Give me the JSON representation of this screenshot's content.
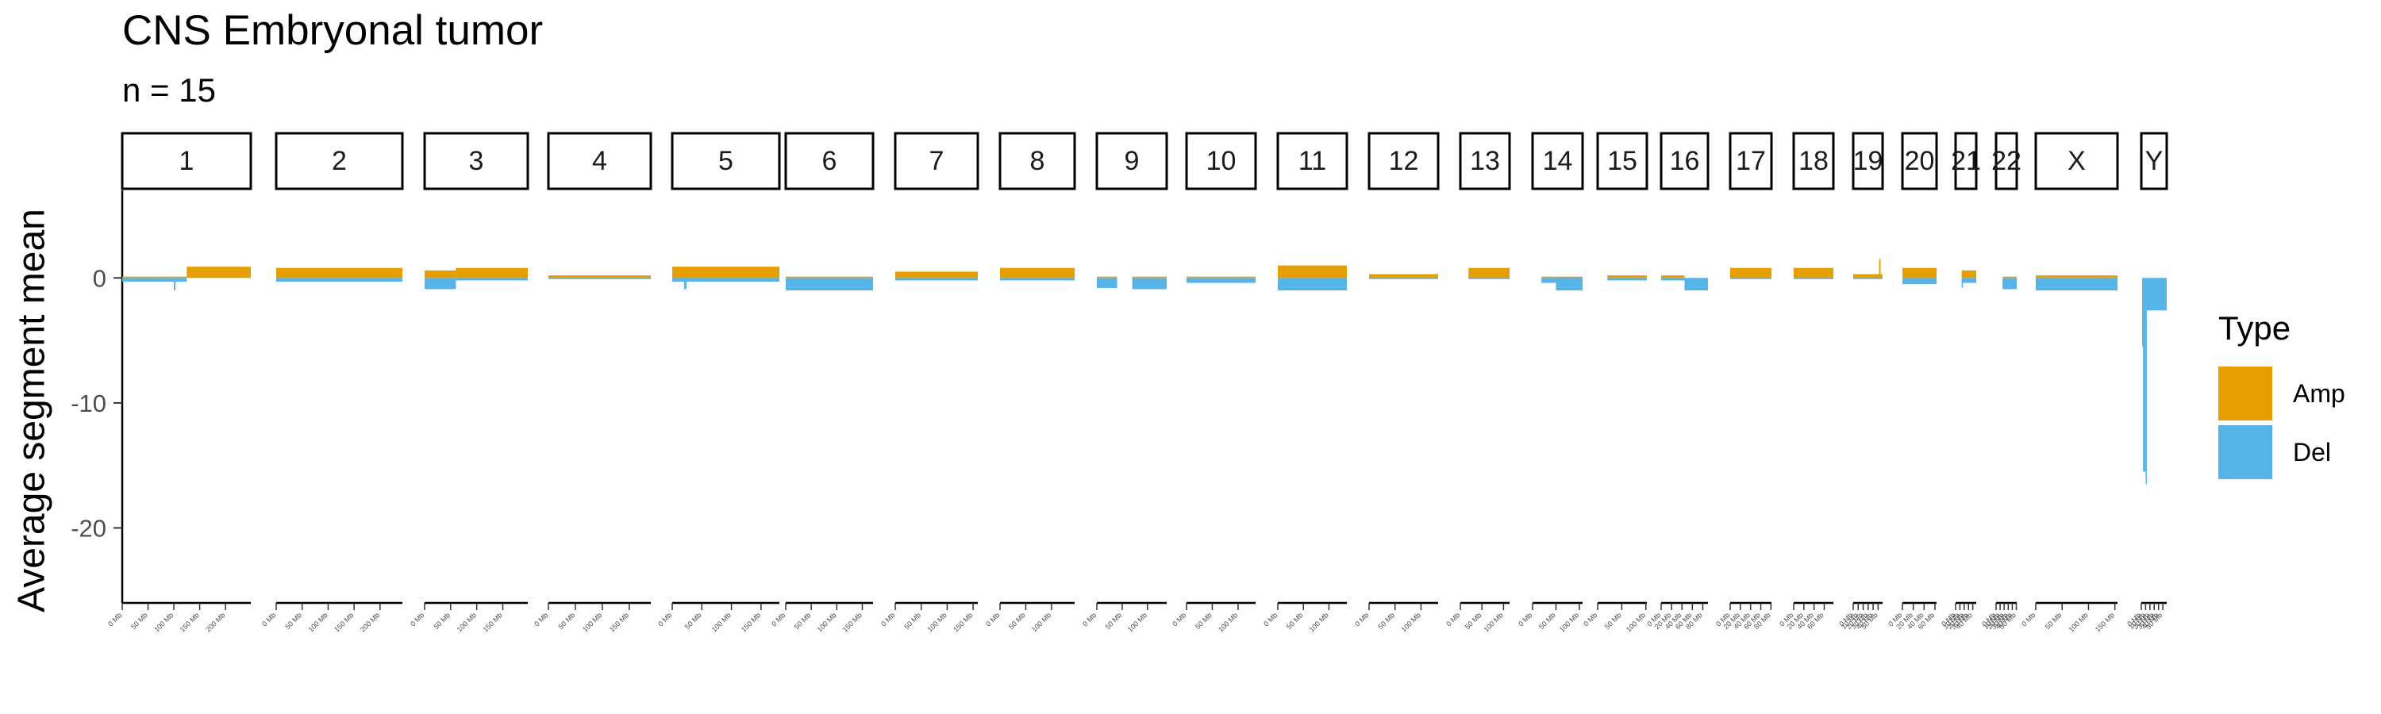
{
  "title": "CNS Embryonal tumor",
  "subtitle": "n = 15",
  "colors": {
    "amp": "#E69F00",
    "del": "#56B4E9"
  },
  "chart_data": {
    "type": "bar",
    "ylabel": "Average segment mean",
    "ylim": [
      -26,
      7
    ],
    "yticks": [
      0,
      -10,
      -20
    ],
    "grid": false,
    "legend": {
      "title": "Type",
      "placement": "right",
      "entries": [
        "Amp",
        "Del"
      ]
    },
    "x_tick_unit": "Mb",
    "series": [
      {
        "name": "Amp",
        "color": "#E69F00"
      },
      {
        "name": "Del",
        "color": "#56B4E9"
      }
    ],
    "panels": [
      {
        "label": "1",
        "length_mb": 249,
        "segments": [
          {
            "from": 0,
            "to": 125,
            "amp": 0.1,
            "del": -0.3
          },
          {
            "from": 100,
            "to": 103,
            "amp": 0,
            "del": -1.0
          },
          {
            "from": 125,
            "to": 249,
            "amp": 0.9,
            "del": 0
          }
        ]
      },
      {
        "label": "2",
        "length_mb": 243,
        "segments": [
          {
            "from": 0,
            "to": 243,
            "amp": 0.8,
            "del": -0.3
          }
        ]
      },
      {
        "label": "3",
        "length_mb": 198,
        "segments": [
          {
            "from": 0,
            "to": 60,
            "amp": 0.6,
            "del": -0.9
          },
          {
            "from": 60,
            "to": 198,
            "amp": 0.8,
            "del": -0.2
          }
        ]
      },
      {
        "label": "4",
        "length_mb": 190,
        "segments": [
          {
            "from": 0,
            "to": 190,
            "amp": 0.2,
            "del": -0.1
          }
        ]
      },
      {
        "label": "5",
        "length_mb": 181,
        "segments": [
          {
            "from": 0,
            "to": 181,
            "amp": 0.9,
            "del": -0.3
          },
          {
            "from": 20,
            "to": 24,
            "amp": 0,
            "del": -0.9
          }
        ]
      },
      {
        "label": "6",
        "length_mb": 171,
        "segments": [
          {
            "from": 0,
            "to": 171,
            "amp": 0.1,
            "del": -1.0
          }
        ]
      },
      {
        "label": "7",
        "length_mb": 159,
        "segments": [
          {
            "from": 0,
            "to": 159,
            "amp": 0.5,
            "del": -0.2
          }
        ]
      },
      {
        "label": "8",
        "length_mb": 145,
        "segments": [
          {
            "from": 0,
            "to": 145,
            "amp": 0.8,
            "del": -0.2
          }
        ]
      },
      {
        "label": "9",
        "length_mb": 138,
        "segments": [
          {
            "from": 0,
            "to": 40,
            "amp": 0.1,
            "del": -0.8
          },
          {
            "from": 70,
            "to": 138,
            "amp": 0.1,
            "del": -0.9
          }
        ]
      },
      {
        "label": "10",
        "length_mb": 134,
        "segments": [
          {
            "from": 0,
            "to": 134,
            "amp": 0.1,
            "del": -0.4
          }
        ]
      },
      {
        "label": "11",
        "length_mb": 135,
        "segments": [
          {
            "from": 0,
            "to": 135,
            "amp": 1.0,
            "del": -1.0
          }
        ]
      },
      {
        "label": "12",
        "length_mb": 133,
        "segments": [
          {
            "from": 0,
            "to": 133,
            "amp": 0.3,
            "del": -0.1
          }
        ]
      },
      {
        "label": "13",
        "length_mb": 114,
        "segments": [
          {
            "from": 19,
            "to": 114,
            "amp": 0.8,
            "del": -0.1
          }
        ]
      },
      {
        "label": "14",
        "length_mb": 107,
        "segments": [
          {
            "from": 19,
            "to": 107,
            "amp": 0.1,
            "del": -0.4
          },
          {
            "from": 50,
            "to": 107,
            "amp": 0,
            "del": -1.0
          }
        ]
      },
      {
        "label": "15",
        "length_mb": 102,
        "segments": [
          {
            "from": 20,
            "to": 102,
            "amp": 0.2,
            "del": -0.2
          }
        ]
      },
      {
        "label": "16",
        "length_mb": 90,
        "segments": [
          {
            "from": 0,
            "to": 45,
            "amp": 0.2,
            "del": -0.2
          },
          {
            "from": 45,
            "to": 90,
            "amp": 0,
            "del": -1.0
          }
        ]
      },
      {
        "label": "17",
        "length_mb": 81,
        "segments": [
          {
            "from": 0,
            "to": 81,
            "amp": 0.8,
            "del": -0.1
          }
        ]
      },
      {
        "label": "18",
        "length_mb": 78,
        "segments": [
          {
            "from": 0,
            "to": 78,
            "amp": 0.8,
            "del": -0.1
          }
        ]
      },
      {
        "label": "19",
        "length_mb": 59,
        "segments": [
          {
            "from": 0,
            "to": 59,
            "amp": 0.3,
            "del": -0.1
          },
          {
            "from": 52,
            "to": 55,
            "amp": 1.5,
            "del": 0
          }
        ]
      },
      {
        "label": "20",
        "length_mb": 63,
        "segments": [
          {
            "from": 0,
            "to": 63,
            "amp": 0.8,
            "del": -0.5
          }
        ]
      },
      {
        "label": "21",
        "length_mb": 48,
        "segments": [
          {
            "from": 14,
            "to": 48,
            "amp": 0.6,
            "del": -0.4
          },
          {
            "from": 14,
            "to": 16,
            "amp": 0,
            "del": -0.8
          }
        ]
      },
      {
        "label": "22",
        "length_mb": 51,
        "segments": [
          {
            "from": 16,
            "to": 51,
            "amp": 0.1,
            "del": -0.9
          }
        ]
      },
      {
        "label": "X",
        "length_mb": 155,
        "segments": [
          {
            "from": 0,
            "to": 155,
            "amp": 0.2,
            "del": -1.0
          }
        ]
      },
      {
        "label": "Y",
        "length_mb": 59,
        "segments": [
          {
            "from": 2,
            "to": 4,
            "amp": 0,
            "del": -5.5
          },
          {
            "from": 4,
            "to": 10,
            "amp": 0,
            "del": -15.5
          },
          {
            "from": 10,
            "to": 12,
            "amp": 0,
            "del": -16.5
          },
          {
            "from": 12,
            "to": 22,
            "amp": 0,
            "del": -2.6
          },
          {
            "from": 22,
            "to": 59,
            "amp": 0,
            "del": -2.6
          }
        ]
      }
    ]
  }
}
